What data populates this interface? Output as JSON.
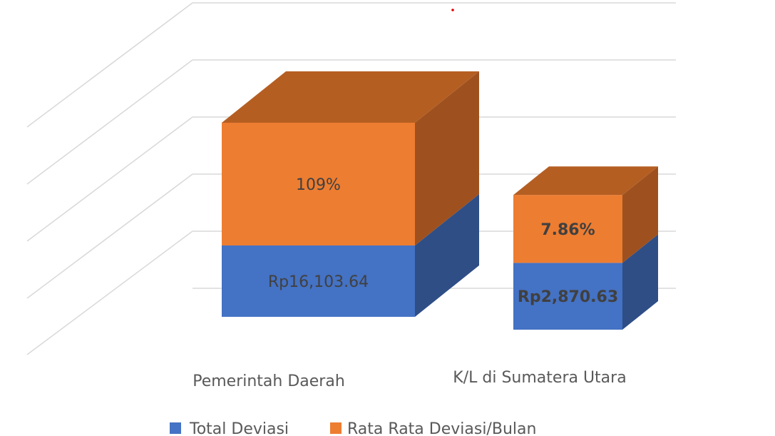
{
  "chart_data": {
    "type": "bar",
    "stacked": true,
    "three_d": true,
    "categories": [
      "Pemerintah Daerah",
      "K/L di Sumatera Utara"
    ],
    "series": [
      {
        "name": "Total Deviasi",
        "color": "#4472C4",
        "side_color": "#2F4E86",
        "values": [
          16103.64,
          2870.63
        ],
        "labels": [
          "Rp16,103.64",
          "Rp2,870.63"
        ]
      },
      {
        "name": "Rata Rata Deviasi/Bulan",
        "color": "#ED7D31",
        "side_color": "#9E511F",
        "top_color": "#B55E22",
        "values": [
          109,
          7.86
        ],
        "labels": [
          "109%",
          "7.86%"
        ]
      }
    ],
    "segment_heights_relative": [
      [
        1.25,
        2.15
      ],
      [
        1.17,
        1.19
      ]
    ],
    "label_bold": [
      false,
      true
    ],
    "gridlines": true,
    "legend_position": "bottom"
  }
}
